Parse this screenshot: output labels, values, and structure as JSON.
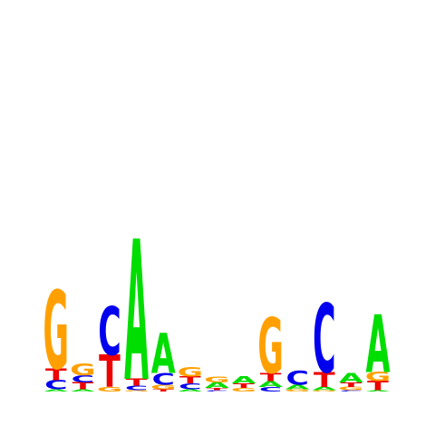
{
  "chart_data": {
    "type": "sequence-logo",
    "title": "",
    "xlabel": "",
    "ylabel": "",
    "ylim_bits": [
      0,
      2
    ],
    "alphabet": [
      "A",
      "C",
      "G",
      "T"
    ],
    "colors": {
      "A": "#00dd00",
      "C": "#0000ee",
      "G": "#ffa000",
      "T": "#ee0000"
    },
    "positions": [
      {
        "index": 1,
        "letters": [
          {
            "l": "A",
            "bits": 0.02
          },
          {
            "l": "C",
            "bits": 0.08
          },
          {
            "l": "T",
            "bits": 0.1
          },
          {
            "l": "G",
            "bits": 0.68
          }
        ]
      },
      {
        "index": 2,
        "letters": [
          {
            "l": "A",
            "bits": 0.02
          },
          {
            "l": "T",
            "bits": 0.06
          },
          {
            "l": "C",
            "bits": 0.06
          },
          {
            "l": "G",
            "bits": 0.1
          }
        ]
      },
      {
        "index": 3,
        "letters": [
          {
            "l": "G",
            "bits": 0.04
          },
          {
            "l": "T",
            "bits": 0.28
          },
          {
            "l": "C",
            "bits": 0.42
          }
        ]
      },
      {
        "index": 4,
        "letters": [
          {
            "l": "G",
            "bits": 0.01
          },
          {
            "l": "C",
            "bits": 0.04
          },
          {
            "l": "T",
            "bits": 0.06
          },
          {
            "l": "A",
            "bits": 1.22
          }
        ]
      },
      {
        "index": 5,
        "letters": [
          {
            "l": "T",
            "bits": 0.02
          },
          {
            "l": "G",
            "bits": 0.04
          },
          {
            "l": "C",
            "bits": 0.1
          },
          {
            "l": "A",
            "bits": 0.35
          }
        ]
      },
      {
        "index": 6,
        "letters": [
          {
            "l": "A",
            "bits": 0.02
          },
          {
            "l": "C",
            "bits": 0.05
          },
          {
            "l": "T",
            "bits": 0.06
          },
          {
            "l": "G",
            "bits": 0.08
          }
        ]
      },
      {
        "index": 7,
        "letters": [
          {
            "l": "C",
            "bits": 0.01
          },
          {
            "l": "T",
            "bits": 0.02
          },
          {
            "l": "A",
            "bits": 0.05
          },
          {
            "l": "G",
            "bits": 0.05
          }
        ]
      },
      {
        "index": 8,
        "letters": [
          {
            "l": "G",
            "bits": 0.03
          },
          {
            "l": "T",
            "bits": 0.04
          },
          {
            "l": "A",
            "bits": 0.06
          }
        ]
      },
      {
        "index": 9,
        "letters": [
          {
            "l": "C",
            "bits": 0.04
          },
          {
            "l": "A",
            "bits": 0.05
          },
          {
            "l": "T",
            "bits": 0.07
          },
          {
            "l": "G",
            "bits": 0.48
          }
        ]
      },
      {
        "index": 10,
        "letters": [
          {
            "l": "G",
            "bits": 0.02
          },
          {
            "l": "A",
            "bits": 0.04
          },
          {
            "l": "C",
            "bits": 0.12
          }
        ]
      },
      {
        "index": 11,
        "letters": [
          {
            "l": "G",
            "bits": 0.01
          },
          {
            "l": "A",
            "bits": 0.03
          },
          {
            "l": "T",
            "bits": 0.13
          },
          {
            "l": "C",
            "bits": 0.6
          }
        ]
      },
      {
        "index": 12,
        "letters": [
          {
            "l": "C",
            "bits": 0.01
          },
          {
            "l": "G",
            "bits": 0.03
          },
          {
            "l": "T",
            "bits": 0.04
          },
          {
            "l": "A",
            "bits": 0.08
          }
        ]
      },
      {
        "index": 13,
        "letters": [
          {
            "l": "A",
            "bits": 0.01
          },
          {
            "l": "T",
            "bits": 0.08
          },
          {
            "l": "G",
            "bits": 0.08
          },
          {
            "l": "A",
            "bits": 0.5
          }
        ]
      }
    ]
  }
}
